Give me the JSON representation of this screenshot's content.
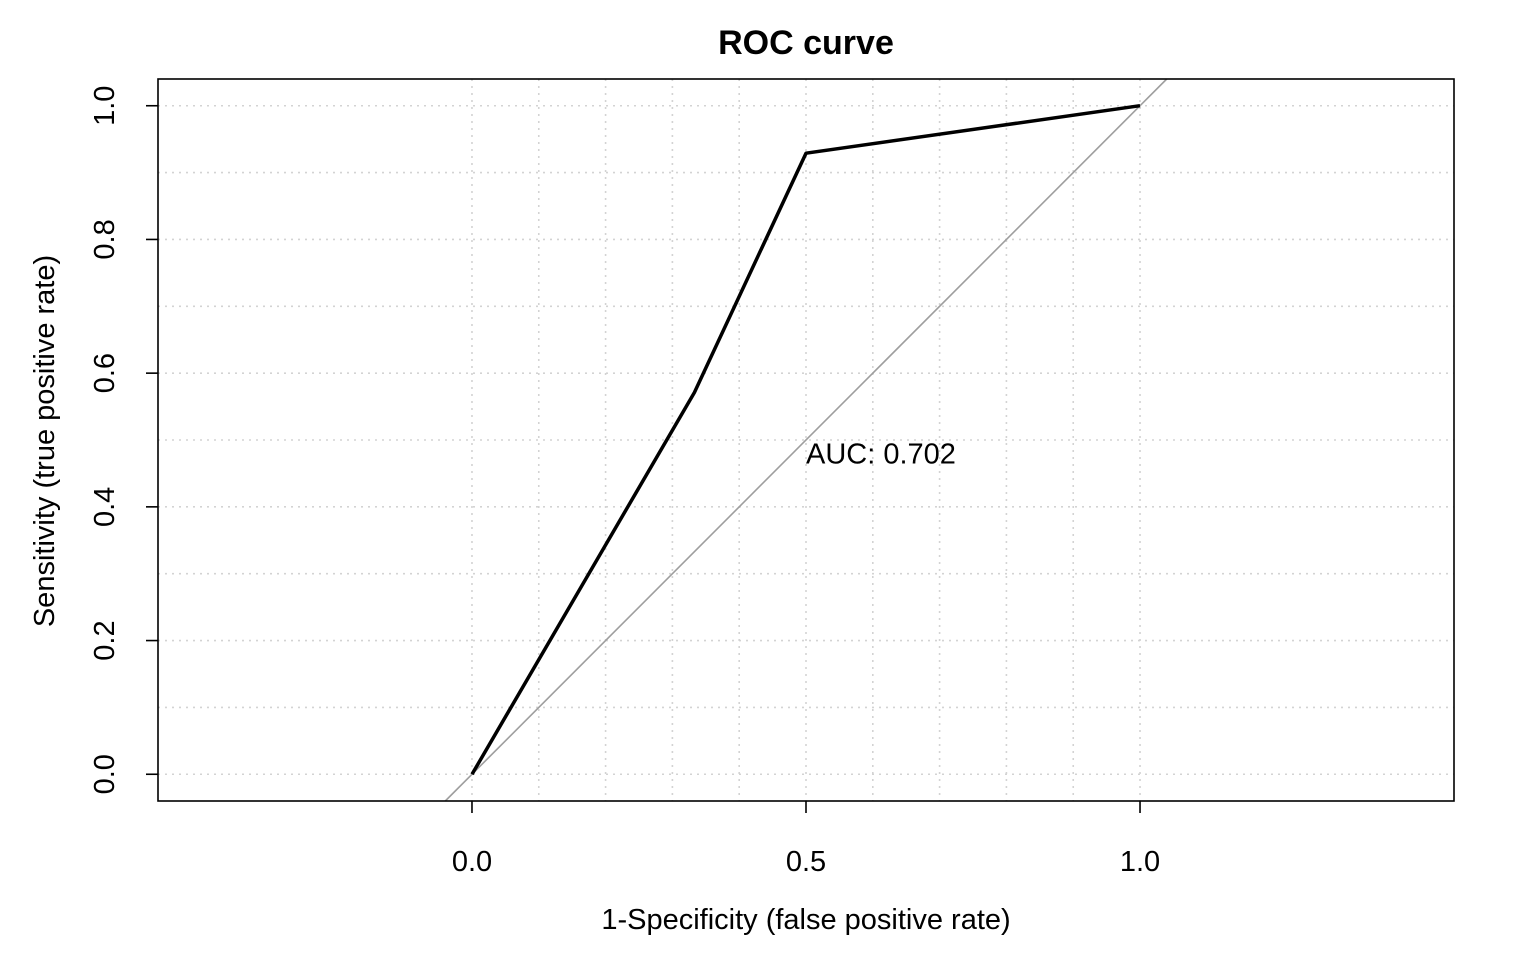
{
  "chart_data": {
    "type": "line",
    "title": "ROC curve",
    "xlabel": "1-Specificity (false positive rate)",
    "ylabel": "Sensitivity (true positive rate)",
    "xlim": [
      -0.47,
      1.47
    ],
    "ylim": [
      -0.04,
      1.04
    ],
    "x_ticks": [
      "0.0",
      "0.5",
      "1.0"
    ],
    "y_ticks": [
      "0.0",
      "0.2",
      "0.4",
      "0.6",
      "0.8",
      "1.0"
    ],
    "x_tick_values": [
      0,
      0.5,
      1
    ],
    "y_tick_values": [
      0,
      0.2,
      0.4,
      0.6,
      0.8,
      1
    ],
    "x_grid_values": [
      0,
      0.1,
      0.2,
      0.3,
      0.4,
      0.5,
      0.6,
      0.7,
      0.8,
      0.9,
      1.0
    ],
    "y_grid_values": [
      0,
      0.1,
      0.2,
      0.3,
      0.4,
      0.5,
      0.6,
      0.7,
      0.8,
      0.9,
      1.0
    ],
    "grid": true,
    "reference_line": {
      "intercept": 0,
      "slope": 1,
      "color": "#9e9e9e"
    },
    "series": [
      {
        "x": [
          0,
          0.333,
          0.5,
          1.0
        ],
        "y": [
          0,
          0.571,
          0.929,
          1.0
        ],
        "color": "#000000"
      }
    ],
    "annotation": {
      "text": "AUC: 0.702",
      "x": 0.5,
      "y": 0.48
    }
  }
}
